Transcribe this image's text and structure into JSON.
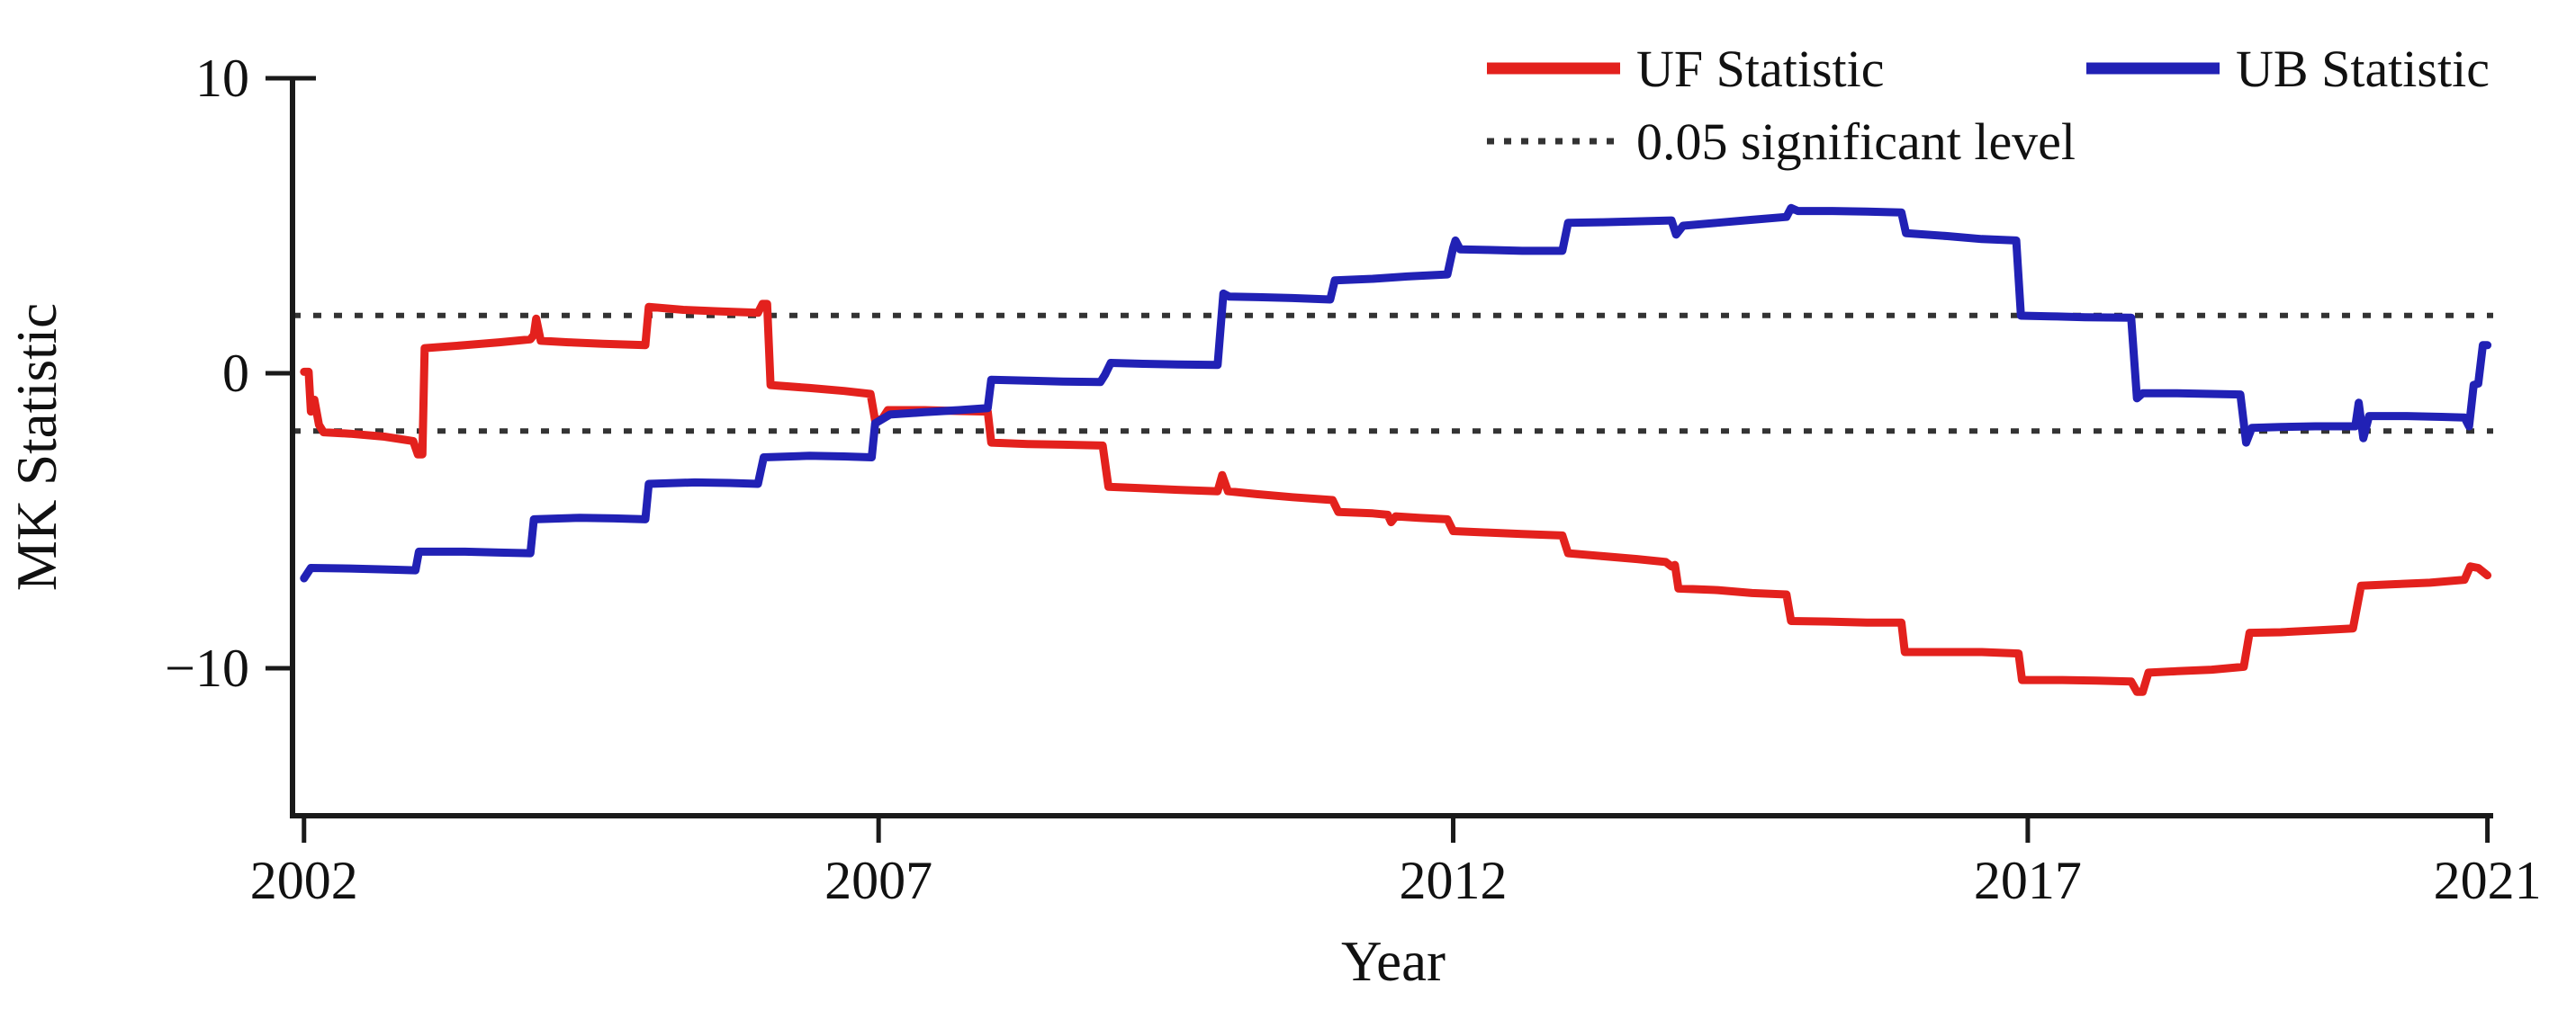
{
  "figure": {
    "background": "#ffffff",
    "axis_color": "#1a1a1a"
  },
  "chart_data": {
    "type": "line",
    "title": "",
    "xlabel": "Year",
    "ylabel": "MK Statistic",
    "xlim": [
      2001.9,
      2021.05
    ],
    "ylim": [
      -15,
      10
    ],
    "grid": false,
    "legend_position": "top-right",
    "x_ticks": [
      {
        "value": 2002,
        "label": "2002"
      },
      {
        "value": 2007,
        "label": "2007"
      },
      {
        "value": 2012,
        "label": "2012"
      },
      {
        "value": 2017,
        "label": "2017"
      },
      {
        "value": 2021,
        "label": "2021"
      }
    ],
    "y_ticks": [
      {
        "value": 10,
        "label": "10"
      },
      {
        "value": 0,
        "label": "0"
      },
      {
        "value": -10,
        "label": "−10"
      }
    ],
    "significance": {
      "label": "0.05 significant level",
      "values": [
        1.96,
        -1.96
      ],
      "style": "dotted",
      "color": "#333333"
    },
    "series": [
      {
        "name": "UF Statistic",
        "color": "#e3211d",
        "points": [
          [
            2002.0,
            0.05
          ],
          [
            2002.04,
            0.05
          ],
          [
            2002.06,
            -1.3
          ],
          [
            2002.09,
            -0.9
          ],
          [
            2002.13,
            -1.75
          ],
          [
            2002.17,
            -2.0
          ],
          [
            2002.4,
            -2.05
          ],
          [
            2002.7,
            -2.15
          ],
          [
            2002.95,
            -2.3
          ],
          [
            2002.99,
            -2.75
          ],
          [
            2003.03,
            -2.75
          ],
          [
            2003.05,
            0.85
          ],
          [
            2003.4,
            0.95
          ],
          [
            2003.7,
            1.05
          ],
          [
            2003.97,
            1.15
          ],
          [
            2004.0,
            1.3
          ],
          [
            2004.02,
            1.85
          ],
          [
            2004.06,
            1.1
          ],
          [
            2004.3,
            1.05
          ],
          [
            2004.6,
            1.0
          ],
          [
            2004.97,
            0.95
          ],
          [
            2005.0,
            2.25
          ],
          [
            2005.3,
            2.15
          ],
          [
            2005.6,
            2.1
          ],
          [
            2005.95,
            2.05
          ],
          [
            2005.99,
            2.35
          ],
          [
            2006.03,
            2.35
          ],
          [
            2006.06,
            -0.4
          ],
          [
            2006.4,
            -0.5
          ],
          [
            2006.7,
            -0.6
          ],
          [
            2006.93,
            -0.7
          ],
          [
            2006.97,
            -1.6
          ],
          [
            2007.03,
            -1.55
          ],
          [
            2007.08,
            -1.25
          ],
          [
            2007.4,
            -1.25
          ],
          [
            2007.7,
            -1.28
          ],
          [
            2007.95,
            -1.3
          ],
          [
            2007.98,
            -2.35
          ],
          [
            2008.3,
            -2.4
          ],
          [
            2008.6,
            -2.42
          ],
          [
            2008.95,
            -2.45
          ],
          [
            2009.0,
            -3.85
          ],
          [
            2009.3,
            -3.9
          ],
          [
            2009.6,
            -3.95
          ],
          [
            2009.95,
            -4.0
          ],
          [
            2009.99,
            -3.45
          ],
          [
            2010.04,
            -4.0
          ],
          [
            2010.3,
            -4.1
          ],
          [
            2010.6,
            -4.2
          ],
          [
            2010.95,
            -4.3
          ],
          [
            2011.0,
            -4.7
          ],
          [
            2011.3,
            -4.75
          ],
          [
            2011.43,
            -4.8
          ],
          [
            2011.46,
            -5.05
          ],
          [
            2011.5,
            -4.85
          ],
          [
            2011.7,
            -4.9
          ],
          [
            2011.95,
            -4.95
          ],
          [
            2012.0,
            -5.35
          ],
          [
            2012.3,
            -5.4
          ],
          [
            2012.6,
            -5.45
          ],
          [
            2012.95,
            -5.5
          ],
          [
            2013.0,
            -6.1
          ],
          [
            2013.3,
            -6.2
          ],
          [
            2013.6,
            -6.3
          ],
          [
            2013.85,
            -6.4
          ],
          [
            2013.9,
            -6.55
          ],
          [
            2013.93,
            -6.5
          ],
          [
            2013.96,
            -7.3
          ],
          [
            2014.3,
            -7.35
          ],
          [
            2014.6,
            -7.45
          ],
          [
            2014.9,
            -7.5
          ],
          [
            2014.94,
            -8.4
          ],
          [
            2015.3,
            -8.42
          ],
          [
            2015.6,
            -8.45
          ],
          [
            2015.9,
            -8.45
          ],
          [
            2015.93,
            -9.45
          ],
          [
            2016.3,
            -9.45
          ],
          [
            2016.6,
            -9.45
          ],
          [
            2016.92,
            -9.5
          ],
          [
            2016.95,
            -10.4
          ],
          [
            2017.3,
            -10.4
          ],
          [
            2017.6,
            -10.42
          ],
          [
            2017.9,
            -10.45
          ],
          [
            2017.95,
            -10.8
          ],
          [
            2018.0,
            -10.8
          ],
          [
            2018.05,
            -10.15
          ],
          [
            2018.3,
            -10.1
          ],
          [
            2018.6,
            -10.05
          ],
          [
            2018.88,
            -9.95
          ],
          [
            2018.93,
            -8.8
          ],
          [
            2019.2,
            -8.78
          ],
          [
            2019.5,
            -8.72
          ],
          [
            2019.83,
            -8.65
          ],
          [
            2019.9,
            -7.2
          ],
          [
            2020.2,
            -7.15
          ],
          [
            2020.5,
            -7.1
          ],
          [
            2020.8,
            -7.0
          ],
          [
            2020.85,
            -6.55
          ],
          [
            2020.92,
            -6.6
          ],
          [
            2021.0,
            -6.85
          ]
        ]
      },
      {
        "name": "UB Statistic",
        "color": "#2121b5",
        "points": [
          [
            2002.0,
            -6.95
          ],
          [
            2002.06,
            -6.6
          ],
          [
            2002.4,
            -6.62
          ],
          [
            2002.7,
            -6.65
          ],
          [
            2002.97,
            -6.68
          ],
          [
            2003.0,
            -6.05
          ],
          [
            2003.4,
            -6.05
          ],
          [
            2003.7,
            -6.08
          ],
          [
            2003.97,
            -6.1
          ],
          [
            2004.0,
            -4.95
          ],
          [
            2004.4,
            -4.9
          ],
          [
            2004.7,
            -4.92
          ],
          [
            2004.97,
            -4.95
          ],
          [
            2005.0,
            -3.75
          ],
          [
            2005.4,
            -3.7
          ],
          [
            2005.7,
            -3.72
          ],
          [
            2005.95,
            -3.75
          ],
          [
            2006.0,
            -2.85
          ],
          [
            2006.4,
            -2.8
          ],
          [
            2006.7,
            -2.82
          ],
          [
            2006.94,
            -2.85
          ],
          [
            2006.97,
            -1.7
          ],
          [
            2007.1,
            -1.4
          ],
          [
            2007.4,
            -1.32
          ],
          [
            2007.7,
            -1.25
          ],
          [
            2007.95,
            -1.18
          ],
          [
            2007.98,
            -0.22
          ],
          [
            2008.3,
            -0.25
          ],
          [
            2008.6,
            -0.28
          ],
          [
            2008.93,
            -0.3
          ],
          [
            2008.97,
            -0.05
          ],
          [
            2009.02,
            0.35
          ],
          [
            2009.3,
            0.32
          ],
          [
            2009.6,
            0.3
          ],
          [
            2009.95,
            0.28
          ],
          [
            2010.0,
            2.7
          ],
          [
            2010.05,
            2.6
          ],
          [
            2010.3,
            2.58
          ],
          [
            2010.6,
            2.55
          ],
          [
            2010.93,
            2.5
          ],
          [
            2010.97,
            3.15
          ],
          [
            2011.3,
            3.2
          ],
          [
            2011.6,
            3.28
          ],
          [
            2011.95,
            3.35
          ],
          [
            2012.0,
            4.25
          ],
          [
            2012.02,
            4.5
          ],
          [
            2012.06,
            4.2
          ],
          [
            2012.3,
            4.18
          ],
          [
            2012.6,
            4.15
          ],
          [
            2012.95,
            4.15
          ],
          [
            2013.0,
            5.1
          ],
          [
            2013.3,
            5.12
          ],
          [
            2013.6,
            5.15
          ],
          [
            2013.9,
            5.18
          ],
          [
            2013.94,
            4.7
          ],
          [
            2014.0,
            5.0
          ],
          [
            2014.3,
            5.1
          ],
          [
            2014.6,
            5.2
          ],
          [
            2014.9,
            5.3
          ],
          [
            2014.94,
            5.6
          ],
          [
            2015.0,
            5.5
          ],
          [
            2015.3,
            5.5
          ],
          [
            2015.6,
            5.48
          ],
          [
            2015.9,
            5.45
          ],
          [
            2015.94,
            4.75
          ],
          [
            2016.3,
            4.65
          ],
          [
            2016.6,
            4.55
          ],
          [
            2016.9,
            4.5
          ],
          [
            2016.94,
            1.95
          ],
          [
            2017.2,
            1.93
          ],
          [
            2017.5,
            1.9
          ],
          [
            2017.9,
            1.88
          ],
          [
            2017.95,
            -0.85
          ],
          [
            2018.0,
            -0.68
          ],
          [
            2018.3,
            -0.68
          ],
          [
            2018.6,
            -0.7
          ],
          [
            2018.85,
            -0.72
          ],
          [
            2018.9,
            -2.35
          ],
          [
            2018.95,
            -1.85
          ],
          [
            2019.2,
            -1.82
          ],
          [
            2019.5,
            -1.8
          ],
          [
            2019.85,
            -1.8
          ],
          [
            2019.88,
            -1.0
          ],
          [
            2019.92,
            -2.2
          ],
          [
            2019.97,
            -1.45
          ],
          [
            2020.3,
            -1.45
          ],
          [
            2020.6,
            -1.48
          ],
          [
            2020.8,
            -1.5
          ],
          [
            2020.84,
            -1.8
          ],
          [
            2020.88,
            -0.4
          ],
          [
            2020.92,
            -0.35
          ],
          [
            2020.96,
            0.95
          ],
          [
            2021.0,
            0.95
          ]
        ]
      }
    ]
  }
}
